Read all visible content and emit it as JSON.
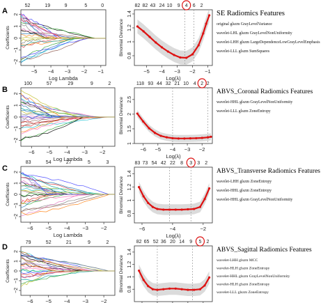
{
  "panels": [
    {
      "letter": "A",
      "title": "SE Radiomics Features",
      "features": [
        "original glszm GrayLevelVariance",
        "wavelet-LHL glszm GrayLevelNonUniformity",
        "wavelet-LHH glszm LargeDependenceLowGrayLevelEmphasis",
        "wavelet-LLL glszm SumSquares"
      ]
    },
    {
      "letter": "B",
      "title": "ABVS_Coronal Radiomics Features",
      "features": [
        "wavelet-HHL glszm GrayLevelNonUniformity",
        "wavelet-LLL glszm ZoneEntropy"
      ]
    },
    {
      "letter": "C",
      "title": "ABVS_Transverse Radiomics Features",
      "features": [
        "wavelet-LHH glszm ZoneEntropy",
        "wavelet-HHL glszm ZoneEntropy",
        "wavelet-HHL glszm GrayLevelNonUniformity"
      ]
    },
    {
      "letter": "D",
      "title": "ABVS_Sagittal  Radiomics Features",
      "features": [
        "wavelet-LHH glszm MCC",
        "wavelet-HLH glszm ZoneEntropy",
        "wavelet-HHL glszm GrayLevelNonUniformity",
        "wavelet-HLH glszm ZoneEntropy",
        "wavelet-LLL glszm ZoneEntropy"
      ]
    }
  ],
  "chart_data": [
    {
      "type": "line",
      "panel": "A",
      "plot": "coefficient paths",
      "xlabel": "Log Lambda",
      "ylabel": "Coefficients",
      "xlim": [
        -5.8,
        -0.7
      ],
      "ylim": [
        -2.3,
        2.4
      ],
      "xticks": [
        -5,
        -4,
        -3,
        -2,
        -1
      ],
      "yticks": [
        -2,
        -1,
        0,
        1,
        2
      ],
      "top_axis_ticks": [
        -5.4,
        -4.2,
        -3.1,
        -1.9,
        -0.9
      ],
      "top_axis_labels": [
        "52",
        "19",
        "9",
        "5",
        "0"
      ]
    },
    {
      "type": "line",
      "panel": "A",
      "plot": "cross-validation deviance",
      "xlabel": "Log(λ)",
      "ylabel": "Binomial Deviance",
      "xlim": [
        -5.8,
        -0.7
      ],
      "ylim": [
        0.66,
        1.46
      ],
      "xticks": [
        -5,
        -4,
        -3,
        -2,
        -1
      ],
      "yticks": [
        0.8,
        1.0,
        1.2,
        1.4
      ],
      "top_axis_ticks": [
        -5.6,
        -5.1,
        -4.6,
        -4.0,
        -3.5,
        -2.9,
        -2.4,
        -1.9,
        -1.4
      ],
      "top_axis_labels": [
        "82",
        "82",
        "43",
        "24",
        "10",
        "9",
        "4",
        "6",
        "2"
      ],
      "circled_label": "4",
      "x": [
        -5.6,
        -5.2,
        -4.8,
        -4.4,
        -4.0,
        -3.6,
        -3.2,
        -2.8,
        -2.4,
        -2.0,
        -1.6,
        -1.3,
        -1.1,
        -0.9
      ],
      "y": [
        1.22,
        1.15,
        1.07,
        0.99,
        0.92,
        0.86,
        0.81,
        0.775,
        0.77,
        0.82,
        0.95,
        1.12,
        1.26,
        1.38
      ],
      "error_band": 0.1,
      "vlines": [
        -2.5,
        -1.9
      ]
    },
    {
      "type": "line",
      "panel": "B",
      "plot": "coefficient paths",
      "xlabel": "Log Lambda",
      "ylabel": "Coefficients",
      "xlim": [
        -6.6,
        -1.3
      ],
      "ylim": [
        -2.5,
        2.5
      ],
      "xticks": [
        -6,
        -5,
        -4,
        -3,
        -2
      ],
      "yticks": [
        -2,
        -1,
        0,
        1,
        2
      ],
      "top_axis_ticks": [
        -6.2,
        -5.0,
        -3.8,
        -2.6,
        -1.6
      ],
      "top_axis_labels": [
        "100",
        "57",
        "29",
        "9",
        "2"
      ]
    },
    {
      "type": "line",
      "panel": "B",
      "plot": "cross-validation deviance",
      "xlabel": "Log(λ)",
      "ylabel": "Binomial Deviance",
      "xlim": [
        -6.6,
        -1.3
      ],
      "ylim": [
        1.0,
        2.9
      ],
      "xticks": [
        -6,
        -5,
        -4,
        -3,
        -2
      ],
      "yticks": [
        1.0,
        1.5,
        2.0,
        2.5
      ],
      "top_axis_ticks": [
        -6.2,
        -5.5,
        -4.9,
        -4.3,
        -3.7,
        -3.1,
        -2.5,
        -2.0,
        -1.6
      ],
      "top_axis_labels": [
        "118",
        "93",
        "44",
        "32",
        "21",
        "10",
        "4",
        "2",
        "2"
      ],
      "circled_label": "2",
      "x": [
        -6.4,
        -6.0,
        -5.6,
        -5.2,
        -4.8,
        -4.4,
        -4.0,
        -3.6,
        -3.2,
        -2.8,
        -2.4,
        -2.0,
        -1.6,
        -1.4
      ],
      "y": [
        2.02,
        1.75,
        1.52,
        1.36,
        1.26,
        1.21,
        1.18,
        1.17,
        1.17,
        1.175,
        1.18,
        1.19,
        1.21,
        1.23
      ],
      "error_band": 0.12,
      "vlines": [
        -4.0,
        -1.6
      ]
    },
    {
      "type": "line",
      "panel": "C",
      "plot": "coefficient paths",
      "xlabel": "Log Lambda",
      "ylabel": "Coefficients",
      "xlim": [
        -6.5,
        -1.4
      ],
      "ylim": [
        -2.5,
        2.5
      ],
      "xticks": [
        -6,
        -5,
        -4,
        -3,
        -2
      ],
      "yticks": [
        -2,
        -1,
        0,
        1,
        2
      ],
      "top_axis_ticks": [
        -6.1,
        -5.0,
        -3.9,
        -2.8,
        -1.8
      ],
      "top_axis_labels": [
        "83",
        "54",
        "27",
        "5",
        "3"
      ]
    },
    {
      "type": "line",
      "panel": "C",
      "plot": "cross-validation deviance",
      "xlabel": "Log(λ)",
      "ylabel": "Binomial Deviance",
      "xlim": [
        -6.5,
        -1.4
      ],
      "ylim": [
        0.66,
        1.5
      ],
      "xticks": [
        -6,
        -4,
        -2
      ],
      "yticks": [
        0.8,
        1.0,
        1.2,
        1.4
      ],
      "top_axis_ticks": [
        -6.3,
        -5.8,
        -5.2,
        -4.6,
        -4.0,
        -3.4,
        -2.8,
        -2.3,
        -1.8
      ],
      "top_axis_labels": [
        "83",
        "73",
        "54",
        "42",
        "22",
        "8",
        "3",
        "3",
        "2"
      ],
      "circled_label": "3",
      "x": [
        -6.2,
        -5.9,
        -5.6,
        -5.3,
        -5.0,
        -4.6,
        -4.2,
        -3.8,
        -3.4,
        -3.0,
        -2.6,
        -2.2,
        -1.9,
        -1.6
      ],
      "y": [
        1.2,
        1.06,
        0.96,
        0.9,
        0.87,
        0.86,
        0.86,
        0.86,
        0.86,
        0.865,
        0.87,
        0.9,
        1.02,
        1.18
      ],
      "error_band": 0.08,
      "vlines": [
        -4.2,
        -2.8
      ]
    },
    {
      "type": "line",
      "panel": "D",
      "plot": "coefficient paths",
      "xlabel": "Log Lambda",
      "ylabel": "Coefficients",
      "xlim": [
        -6.5,
        -1.4
      ],
      "ylim": [
        -2.5,
        2.5
      ],
      "xticks": [
        -6,
        -5,
        -4,
        -3,
        -2
      ],
      "yticks": [
        -2,
        -1,
        0,
        1,
        2
      ],
      "top_axis_ticks": [
        -6.1,
        -5.0,
        -3.9,
        -2.8,
        -1.8
      ],
      "top_axis_labels": [
        "79",
        "52",
        "21",
        "9",
        "2"
      ]
    },
    {
      "type": "line",
      "panel": "D",
      "plot": "cross-validation deviance",
      "xlabel": "Log(λ)",
      "ylabel": "Binomial Deviance",
      "xlim": [
        -6.5,
        -1.4
      ],
      "ylim": [
        0.6,
        1.5
      ],
      "xticks": [
        -6,
        -5,
        -4,
        -3,
        -2
      ],
      "yticks": [
        0.8,
        1.0,
        1.2,
        1.4
      ],
      "top_axis_ticks": [
        -6.2,
        -5.7,
        -5.1,
        -4.6,
        -4.0,
        -3.4,
        -2.8,
        -2.2,
        -1.7
      ],
      "top_axis_labels": [
        "82",
        "65",
        "52",
        "36",
        "20",
        "14",
        "9",
        "5",
        "2"
      ],
      "circled_label": "5",
      "x": [
        -6.2,
        -5.9,
        -5.6,
        -5.3,
        -5.0,
        -4.6,
        -4.2,
        -3.8,
        -3.4,
        -3.0,
        -2.6,
        -2.2,
        -1.9,
        -1.6
      ],
      "y": [
        1.1,
        0.95,
        0.85,
        0.8,
        0.79,
        0.8,
        0.81,
        0.81,
        0.8,
        0.79,
        0.79,
        0.8,
        0.86,
        0.99
      ],
      "error_band": 0.1,
      "vlines": [
        -5.0,
        -2.7
      ]
    }
  ]
}
